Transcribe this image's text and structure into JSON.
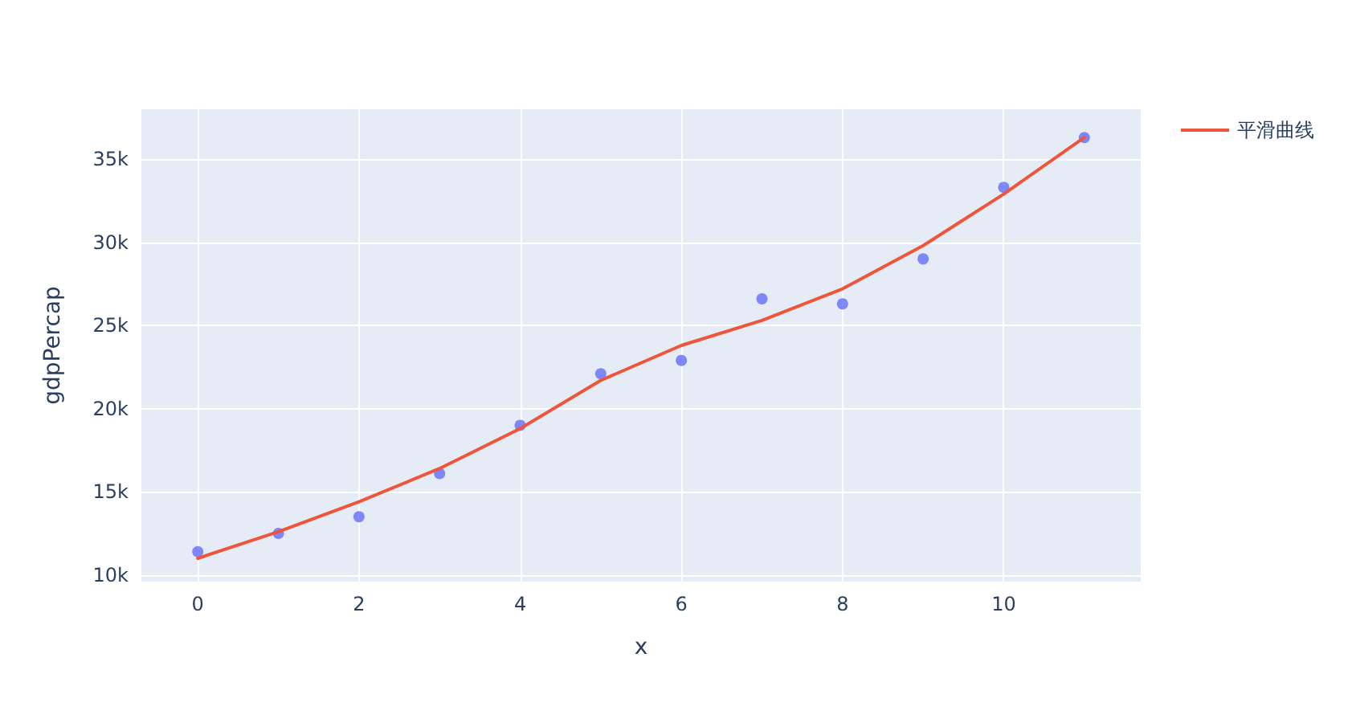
{
  "chart_data": {
    "type": "scatter",
    "xlabel": "x",
    "ylabel": "gdpPercap",
    "xlim": [
      -0.7,
      11.7
    ],
    "xticks": [
      0,
      2,
      4,
      6,
      8,
      10
    ],
    "ylim": [
      9600,
      38000
    ],
    "yticks": [
      {
        "value": 10000,
        "label": "10k"
      },
      {
        "value": 15000,
        "label": "15k"
      },
      {
        "value": 20000,
        "label": "20k"
      },
      {
        "value": 25000,
        "label": "25k"
      },
      {
        "value": 30000,
        "label": "30k"
      },
      {
        "value": 35000,
        "label": "35k"
      }
    ],
    "grid": true,
    "legend": "top right",
    "marker": "circle",
    "series": [
      {
        "color": "#636efa",
        "x": [
          0,
          1,
          2,
          3,
          4,
          5,
          6,
          7,
          8,
          9,
          10,
          11
        ],
        "values": [
          11400,
          12500,
          13500,
          16100,
          19000,
          22100,
          22900,
          26600,
          26300,
          29000,
          33300,
          36300
        ]
      },
      {
        "type": "line",
        "name": "平滑曲线",
        "color": "#ef553b",
        "marker": "none",
        "line_style": "solid",
        "x": [
          0,
          1,
          2,
          3,
          4,
          5,
          6,
          7,
          8,
          9,
          10,
          11
        ],
        "values": [
          11000,
          12600,
          14400,
          16400,
          18800,
          21700,
          23800,
          25300,
          27200,
          29800,
          32900,
          36300
        ]
      }
    ]
  }
}
